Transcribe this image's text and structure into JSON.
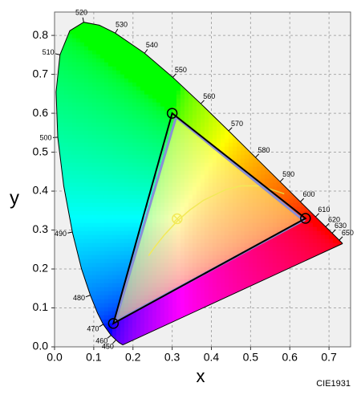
{
  "chart_data": {
    "type": "chromaticity",
    "xlabel": "x",
    "ylabel": "y",
    "annotation": "CIE1931",
    "xlim": [
      0,
      0.755
    ],
    "ylim": [
      0,
      0.86
    ],
    "xticks": [
      {
        "value": 0,
        "label": "0.0"
      },
      0.1,
      0.2,
      0.3,
      0.4,
      0.5,
      0.6,
      0.7
    ],
    "yticks": [
      {
        "value": 0,
        "label": "0.0"
      },
      0.1,
      0.2,
      0.3,
      0.4,
      0.5,
      0.6,
      0.7,
      0.8
    ],
    "grid": true,
    "spectral_locus": {
      "x": [
        0.1741,
        0.1644,
        0.1566,
        0.144,
        0.1241,
        0.1096,
        0.0913,
        0.0687,
        0.0454,
        0.0235,
        0.0082,
        0.0039,
        0.0139,
        0.0389,
        0.0743,
        0.1142,
        0.1547,
        0.2296,
        0.3016,
        0.3731,
        0.4441,
        0.5125,
        0.5752,
        0.627,
        0.6658,
        0.6915,
        0.7079,
        0.726,
        0.7347
      ],
      "y": [
        0.005,
        0.0109,
        0.0177,
        0.0297,
        0.0578,
        0.0868,
        0.1327,
        0.2007,
        0.295,
        0.4127,
        0.5384,
        0.6548,
        0.7502,
        0.812,
        0.8338,
        0.8262,
        0.8059,
        0.7543,
        0.6923,
        0.6245,
        0.5547,
        0.4866,
        0.4242,
        0.3725,
        0.334,
        0.3083,
        0.292,
        0.274,
        0.2653
      ],
      "wavelengths": [
        null,
        null,
        450,
        460,
        470,
        null,
        480,
        null,
        490,
        null,
        500,
        null,
        510,
        null,
        520,
        null,
        530,
        540,
        550,
        560,
        570,
        580,
        590,
        600,
        610,
        620,
        630,
        650,
        null
      ]
    },
    "planckian_locus": {
      "color": "#e3cf3c",
      "x": [
        0.5857,
        0.5267,
        0.477,
        0.4369,
        0.3805,
        0.3451,
        0.3135,
        0.2807,
        0.2565,
        0.2399
      ],
      "y": [
        0.3931,
        0.4133,
        0.4137,
        0.4041,
        0.3768,
        0.3516,
        0.3236,
        0.2883,
        0.2577,
        0.2341
      ]
    },
    "white_point": {
      "x": 0.3127,
      "y": 0.329,
      "color": "#e3cf3c"
    },
    "series": [
      {
        "color": "#8a8fd6",
        "fill": "#ffff70",
        "x": [
          0.635,
          0.31,
          0.155
        ],
        "y": [
          0.325,
          0.59,
          0.065
        ],
        "markers": false
      },
      {
        "color": "#000000",
        "x": [
          0.64,
          0.3,
          0.15
        ],
        "y": [
          0.33,
          0.6,
          0.06
        ],
        "markers": true
      }
    ]
  }
}
